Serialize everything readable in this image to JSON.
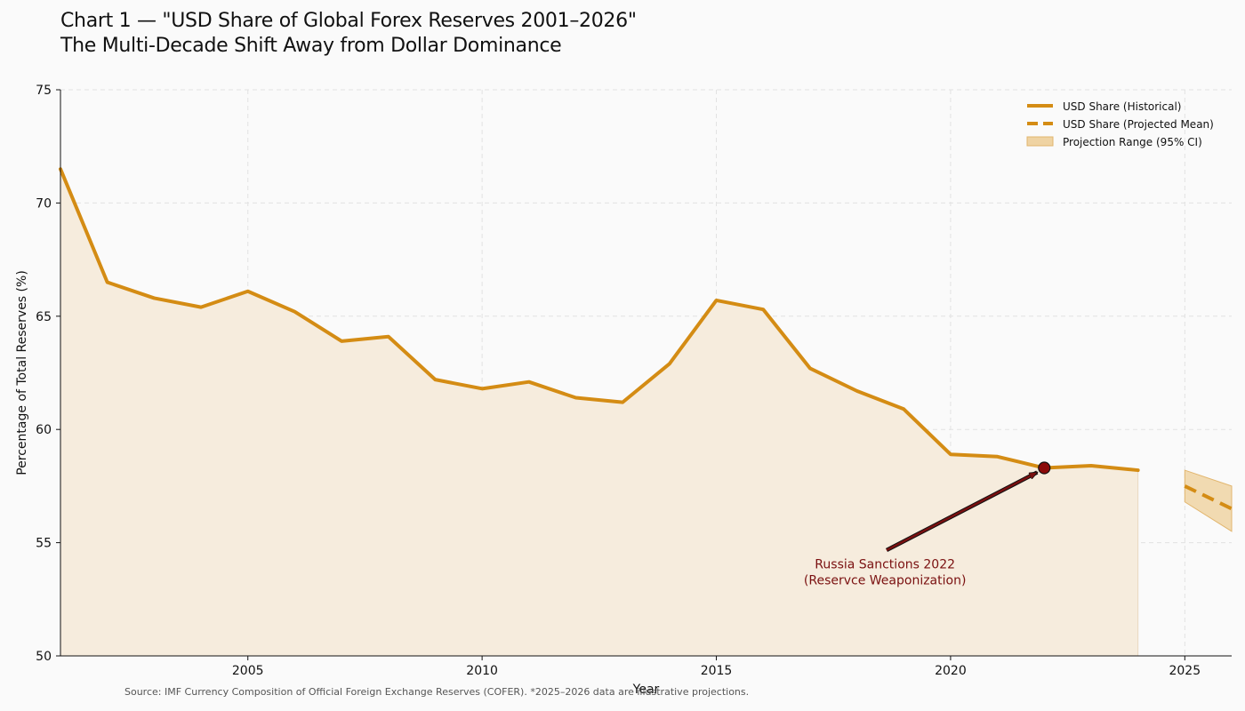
{
  "title_line1": "Chart 1 — \"USD Share of Global Forex Reserves 2001–2026\"",
  "title_line2": "The Multi-Decade Shift Away from Dollar Dominance",
  "source_note": "Source: IMF Currency Composition of Official Foreign Exchange Reserves (COFER). *2025–2026 data are illustrative projections.",
  "colors": {
    "line": "#d48c14",
    "fill": "#f6ecdd",
    "ci_fill": "#efd3a3",
    "annotation": "#7a1010",
    "marker": "#8b0a0a",
    "grid": "#e2e2e2",
    "background": "#fafafa"
  },
  "chart_data": {
    "type": "line",
    "title": "",
    "xlabel": "Year",
    "ylabel": "Percentage of Total Reserves (%)",
    "xlim": [
      2001,
      2026
    ],
    "ylim": [
      50,
      75
    ],
    "x_ticks": [
      "2005",
      "2010",
      "2015",
      "2020",
      "2025"
    ],
    "y_ticks": [
      "50",
      "55",
      "60",
      "65",
      "70",
      "75"
    ],
    "grid": true,
    "legend_position": "top-right",
    "series": [
      {
        "name": "USD Share (Historical)",
        "style": "solid",
        "filled": true,
        "x": [
          2001,
          2002,
          2003,
          2004,
          2005,
          2006,
          2007,
          2008,
          2009,
          2010,
          2011,
          2012,
          2013,
          2014,
          2015,
          2016,
          2017,
          2018,
          2019,
          2020,
          2021,
          2022,
          2023,
          2024
        ],
        "values": [
          71.5,
          66.5,
          65.8,
          65.4,
          66.1,
          65.2,
          63.9,
          64.1,
          62.2,
          61.8,
          62.1,
          61.4,
          61.2,
          62.9,
          65.7,
          65.3,
          62.7,
          61.7,
          60.9,
          58.9,
          58.8,
          58.3,
          58.4,
          58.2
        ]
      },
      {
        "name": "USD Share (Projected Mean)",
        "style": "dashed",
        "x": [
          2025,
          2026
        ],
        "values": [
          57.5,
          56.5
        ]
      }
    ],
    "bands": [
      {
        "name": "Projection Range (95% CI)",
        "x": [
          2025,
          2026
        ],
        "lower": [
          56.8,
          55.5
        ],
        "upper": [
          58.2,
          57.5
        ]
      }
    ],
    "annotations": [
      {
        "text_line1": "Russia Sanctions 2022",
        "text_line2": "(Reservce Weaponization)",
        "x": 2022,
        "y": 58.3,
        "text_x": 2018.6,
        "text_y": 53.4
      }
    ]
  }
}
